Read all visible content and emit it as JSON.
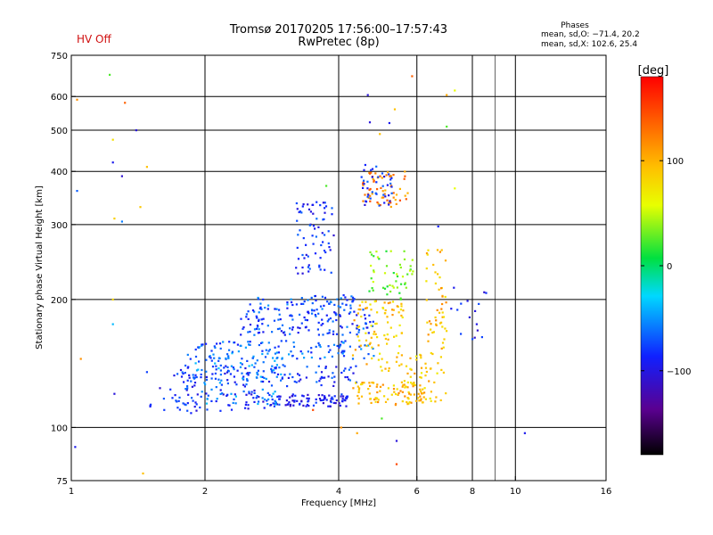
{
  "header": {
    "title_line1": "Tromsø 20170205 17:56:00–17:57:43",
    "title_line2": "RwPretec (8p)",
    "hv_status": "HV Off",
    "hv_color": "#d01010"
  },
  "phases_box": {
    "title": "Phases",
    "line_o": "mean, sd,O: −71.4, 20.2",
    "line_x": "mean, sd,X: 102.6, 25.4"
  },
  "chart_data": {
    "type": "scatter",
    "xlabel": "Frequency [MHz]",
    "ylabel": "Stationary phase Virtual Height [km]",
    "x_scale": "log",
    "y_scale": "log",
    "xlim": [
      1,
      16
    ],
    "ylim": [
      75,
      750
    ],
    "x_ticks": [
      1,
      2,
      4,
      6,
      8,
      10,
      16
    ],
    "x_tick_labels": [
      "1",
      "2",
      "4",
      "6",
      "8",
      "10",
      "16"
    ],
    "y_ticks": [
      75,
      100,
      200,
      300,
      400,
      500,
      600,
      750
    ],
    "y_tick_labels": [
      "75",
      "100",
      "200",
      "300",
      "400",
      "500",
      "600",
      "750"
    ],
    "grid_x": [
      2,
      4,
      6,
      8,
      10
    ],
    "grid_x_thin": [
      9
    ],
    "grid_y": [
      100,
      200,
      300,
      400,
      500,
      600
    ],
    "colorbar": {
      "label": "[deg]",
      "range": [
        -180,
        180
      ],
      "ticks": [
        100,
        0,
        -100
      ],
      "tick_labels": [
        "100",
        "0",
        "−100"
      ]
    },
    "clusters": [
      {
        "name": "o-trace-low",
        "x": [
          1.5,
          2.8
        ],
        "y": [
          108,
          125
        ],
        "phase": -95,
        "n": 60
      },
      {
        "name": "o-trace-mid",
        "x": [
          2.8,
          4.2
        ],
        "y": [
          112,
          120
        ],
        "phase": -100,
        "n": 90
      },
      {
        "name": "x-trace-low",
        "x": [
          1.8,
          3.0
        ],
        "y": [
          113,
          150
        ],
        "phase": -60,
        "n": 120
      },
      {
        "name": "band-130",
        "x": [
          1.7,
          4.5
        ],
        "y": [
          125,
          140
        ],
        "phase": -85,
        "n": 110
      },
      {
        "name": "band-150",
        "x": [
          1.9,
          4.8
        ],
        "y": [
          145,
          160
        ],
        "phase": -70,
        "n": 110
      },
      {
        "name": "band-175",
        "x": [
          2.4,
          4.8
        ],
        "y": [
          165,
          185
        ],
        "phase": -80,
        "n": 110
      },
      {
        "name": "band-200",
        "x": [
          2.5,
          4.6
        ],
        "y": [
          185,
          205
        ],
        "phase": -75,
        "n": 80
      },
      {
        "name": "upper-arc",
        "x": [
          3.2,
          3.9
        ],
        "y": [
          230,
          340
        ],
        "phase": -90,
        "n": 70
      },
      {
        "name": "x-trace-yellow",
        "x": [
          4.3,
          6.2
        ],
        "y": [
          113,
          128
        ],
        "phase": 100,
        "n": 90
      },
      {
        "name": "x-upper",
        "x": [
          4.3,
          5.6
        ],
        "y": [
          135,
          200
        ],
        "phase": 95,
        "n": 90
      },
      {
        "name": "x-right",
        "x": [
          5.6,
          7.0
        ],
        "y": [
          115,
          150
        ],
        "phase": 95,
        "n": 50
      },
      {
        "name": "x-top",
        "x": [
          6.3,
          7.0
        ],
        "y": [
          150,
          270
        ],
        "phase": 100,
        "n": 50
      },
      {
        "name": "spread-f",
        "x": [
          4.5,
          5.8
        ],
        "y": [
          330,
          400
        ],
        "phase": 125,
        "n": 60
      },
      {
        "name": "spread-f-blue",
        "x": [
          4.5,
          5.3
        ],
        "y": [
          330,
          420
        ],
        "phase": -90,
        "n": 40
      },
      {
        "name": "mid-mix",
        "x": [
          4.6,
          5.9
        ],
        "y": [
          200,
          260
        ],
        "phase": 30,
        "n": 50
      },
      {
        "name": "right-blue",
        "x": [
          7.1,
          8.6
        ],
        "y": [
          160,
          220
        ],
        "phase": -95,
        "n": 16
      }
    ],
    "scatter_points": [
      {
        "x": 1.03,
        "y": 590,
        "phase": 120
      },
      {
        "x": 1.22,
        "y": 675,
        "phase": 20
      },
      {
        "x": 1.32,
        "y": 580,
        "phase": 140
      },
      {
        "x": 1.4,
        "y": 500,
        "phase": -110
      },
      {
        "x": 1.24,
        "y": 475,
        "phase": 80
      },
      {
        "x": 1.24,
        "y": 420,
        "phase": -100
      },
      {
        "x": 1.3,
        "y": 390,
        "phase": -115
      },
      {
        "x": 1.48,
        "y": 410,
        "phase": 100
      },
      {
        "x": 1.03,
        "y": 360,
        "phase": -70
      },
      {
        "x": 1.25,
        "y": 310,
        "phase": 90
      },
      {
        "x": 1.3,
        "y": 305,
        "phase": -60
      },
      {
        "x": 1.43,
        "y": 330,
        "phase": 95
      },
      {
        "x": 1.24,
        "y": 175,
        "phase": -40
      },
      {
        "x": 1.24,
        "y": 200,
        "phase": 85
      },
      {
        "x": 1.05,
        "y": 145,
        "phase": 120
      },
      {
        "x": 1.48,
        "y": 135,
        "phase": -80
      },
      {
        "x": 1.25,
        "y": 120,
        "phase": -110
      },
      {
        "x": 1.02,
        "y": 90,
        "phase": -100
      },
      {
        "x": 1.45,
        "y": 78,
        "phase": 100
      },
      {
        "x": 4.65,
        "y": 605,
        "phase": -110
      },
      {
        "x": 4.7,
        "y": 522,
        "phase": -110
      },
      {
        "x": 5.2,
        "y": 520,
        "phase": -100
      },
      {
        "x": 5.35,
        "y": 560,
        "phase": 100
      },
      {
        "x": 4.95,
        "y": 490,
        "phase": 100
      },
      {
        "x": 5.85,
        "y": 670,
        "phase": 140
      },
      {
        "x": 7.0,
        "y": 605,
        "phase": 110
      },
      {
        "x": 7.3,
        "y": 620,
        "phase": 60
      },
      {
        "x": 7.0,
        "y": 510,
        "phase": 20
      },
      {
        "x": 7.3,
        "y": 365,
        "phase": 60
      },
      {
        "x": 10.5,
        "y": 97,
        "phase": -100
      },
      {
        "x": 5.4,
        "y": 93,
        "phase": -110
      },
      {
        "x": 5.4,
        "y": 82,
        "phase": 150
      },
      {
        "x": 5.0,
        "y": 105,
        "phase": 20
      },
      {
        "x": 4.4,
        "y": 97,
        "phase": 110
      },
      {
        "x": 4.05,
        "y": 100,
        "phase": 120
      },
      {
        "x": 3.5,
        "y": 110,
        "phase": 150
      },
      {
        "x": 6.7,
        "y": 297,
        "phase": -90
      },
      {
        "x": 3.75,
        "y": 370,
        "phase": 20
      }
    ]
  }
}
